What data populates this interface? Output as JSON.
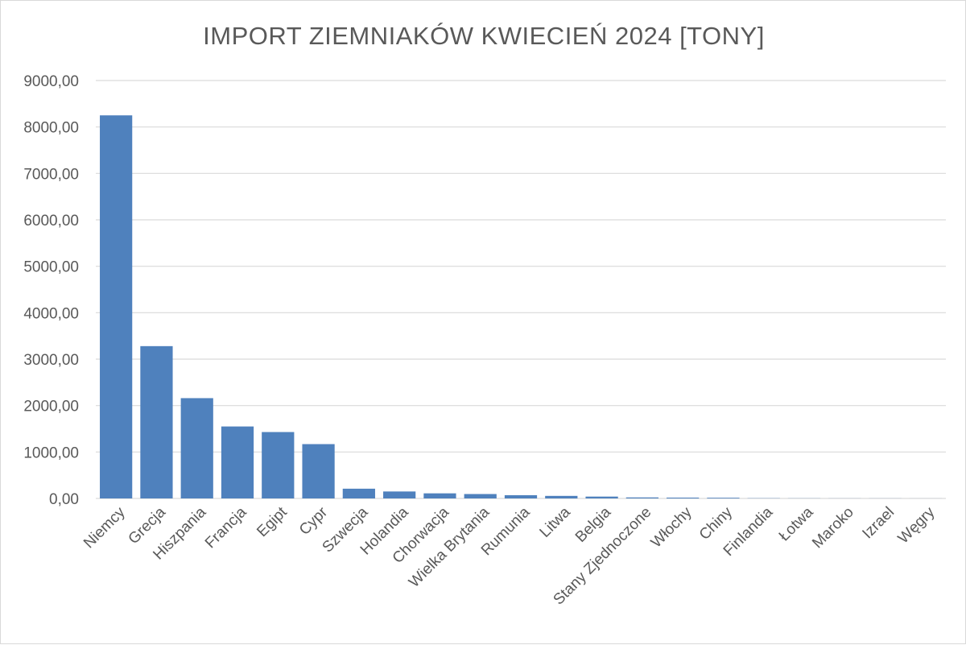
{
  "chart_data": {
    "type": "bar",
    "title": "IMPORT ZIEMNIAKÓW KWIECIEŃ 2024 [TONY]",
    "xlabel": "",
    "ylabel": "",
    "ylim": [
      0,
      9000
    ],
    "y_ticks": [
      "0,00",
      "1000,00",
      "2000,00",
      "3000,00",
      "4000,00",
      "5000,00",
      "6000,00",
      "7000,00",
      "8000,00",
      "9000,00"
    ],
    "grid": true,
    "legend": "none",
    "bar_color": "#4f81bd",
    "categories": [
      "Niemcy",
      "Grecja",
      "Hiszpania",
      "Francja",
      "Egipt",
      "Cypr",
      "Szwecja",
      "Holandia",
      "Chorwacja",
      "Wielka Brytania",
      "Rumunia",
      "Litwa",
      "Belgia",
      "Stany Zjednoczone",
      "Włochy",
      "Chiny",
      "Finlandia",
      "Łotwa",
      "Maroko",
      "Izrael",
      "Węgry"
    ],
    "values": [
      8250,
      3280,
      2160,
      1550,
      1430,
      1170,
      210,
      150,
      110,
      95,
      70,
      55,
      40,
      22,
      18,
      15,
      5,
      3,
      2,
      2,
      1
    ]
  }
}
